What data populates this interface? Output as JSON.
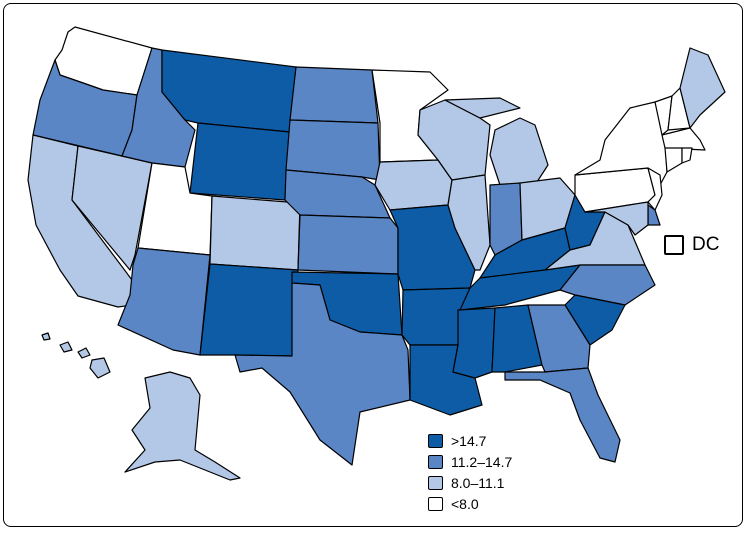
{
  "colors": {
    "dark": "#0e5ca6",
    "medium": "#5a86c6",
    "light": "#b3c8e6",
    "white": "#ffffff"
  },
  "legend": [
    {
      "label": ">14.7",
      "class": "dark"
    },
    {
      "label": "11.2–14.7",
      "class": "medium"
    },
    {
      "label": "8.0–11.1",
      "class": "light"
    },
    {
      "label": "<8.0",
      "class": "white"
    }
  ],
  "dc": {
    "label": "DC",
    "class": "white"
  },
  "states": {
    "WA": "white",
    "OR": "medium",
    "CA": "light",
    "NV": "light",
    "ID": "medium",
    "MT": "dark",
    "WY": "dark",
    "UT": "white",
    "CO": "light",
    "AZ": "medium",
    "NM": "dark",
    "ND": "medium",
    "SD": "medium",
    "NE": "medium",
    "KS": "medium",
    "OK": "dark",
    "TX": "medium",
    "MN": "white",
    "IA": "light",
    "MO": "dark",
    "AR": "dark",
    "LA": "dark",
    "WI": "light",
    "IL": "light",
    "MS": "dark",
    "MI": "light",
    "IN": "medium",
    "KY": "dark",
    "TN": "dark",
    "AL": "dark",
    "OH": "light",
    "WV": "dark",
    "GA": "medium",
    "FL": "medium",
    "SC": "dark",
    "NC": "medium",
    "VA": "light",
    "PA": "white",
    "NY": "white",
    "VT": "white",
    "NH": "white",
    "ME": "light",
    "MA": "white",
    "CT": "white",
    "RI": "white",
    "NJ": "white",
    "DE": "medium",
    "MD": "light",
    "AK": "light",
    "HI": "light"
  }
}
